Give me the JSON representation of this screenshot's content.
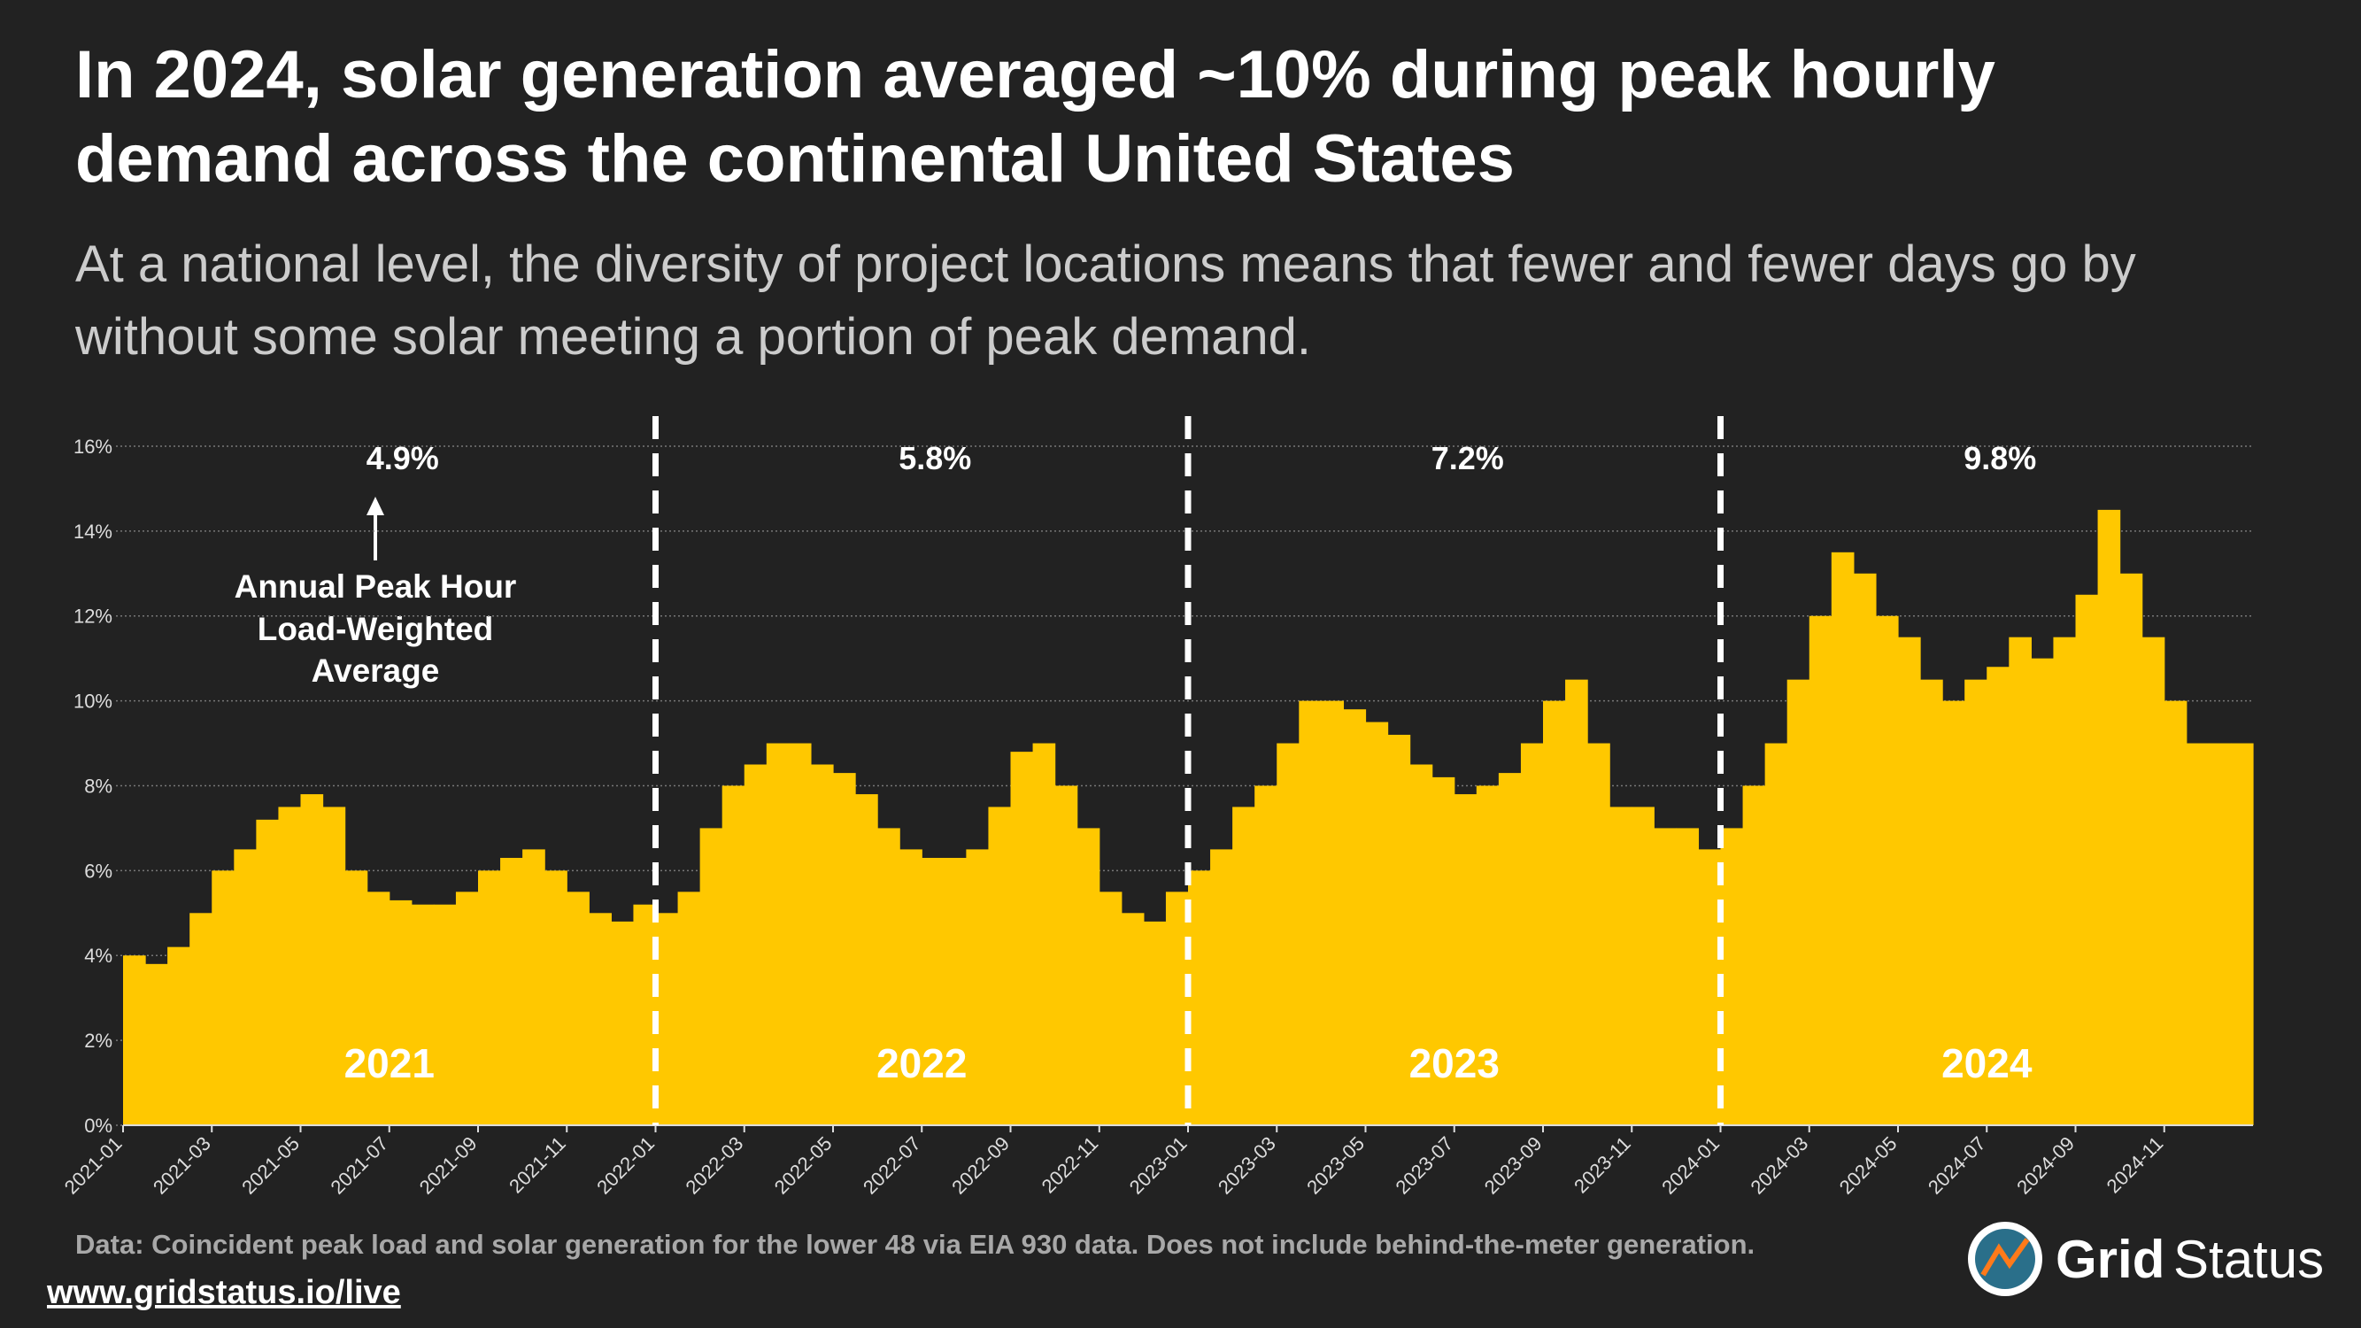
{
  "chart_data": {
    "type": "bar",
    "title_lines": [
      "In 2024, solar generation averaged ~10% during peak hourly",
      "demand across the continental United States"
    ],
    "subtitle_lines": [
      "At a national level, the diversity of project locations means that fewer and fewer days go by",
      "without some solar meeting a portion of peak demand."
    ],
    "categories": [
      "2021-01",
      null,
      null,
      null,
      "2021-03",
      null,
      null,
      null,
      "2021-05",
      null,
      null,
      null,
      "2021-07",
      null,
      null,
      null,
      "2021-09",
      null,
      null,
      null,
      "2021-11",
      null,
      null,
      null,
      "2022-01",
      null,
      null,
      null,
      "2022-03",
      null,
      null,
      null,
      "2022-05",
      null,
      null,
      null,
      "2022-07",
      null,
      null,
      null,
      "2022-09",
      null,
      null,
      null,
      "2022-11",
      null,
      null,
      null,
      "2023-01",
      null,
      null,
      null,
      "2023-03",
      null,
      null,
      null,
      "2023-05",
      null,
      null,
      null,
      "2023-07",
      null,
      null,
      null,
      "2023-09",
      null,
      null,
      null,
      "2023-11",
      null,
      null,
      null,
      "2024-01",
      null,
      null,
      null,
      "2024-03",
      null,
      null,
      null,
      "2024-05",
      null,
      null,
      null,
      "2024-07",
      null,
      null,
      null,
      "2024-09",
      null,
      null,
      null,
      "2024-11",
      null,
      null,
      null
    ],
    "values": [
      4,
      3.8,
      4.2,
      5,
      6,
      6.5,
      7.2,
      7.5,
      7.8,
      7.5,
      6,
      5.5,
      5.3,
      5.2,
      5.2,
      5.5,
      6,
      6.3,
      6.5,
      6,
      5.5,
      5,
      4.8,
      5.2,
      5,
      5.5,
      7,
      8,
      8.5,
      9,
      9,
      8.5,
      8.3,
      7.8,
      7,
      6.5,
      6.3,
      6.3,
      6.5,
      7.5,
      8.8,
      9,
      8,
      7,
      5.5,
      5,
      4.8,
      5.5,
      6,
      6.5,
      7.5,
      8,
      9,
      10,
      10,
      9.8,
      9.5,
      9.2,
      8.5,
      8.2,
      7.8,
      8,
      8.3,
      9,
      10,
      10.5,
      9,
      7.5,
      7.5,
      7,
      7,
      6.5,
      7,
      8,
      9,
      10.5,
      12,
      13.5,
      13,
      12,
      11.5,
      10.5,
      10,
      10.5,
      10.8,
      11.5,
      11,
      11.5,
      12.5,
      14.5,
      13,
      11.5,
      10,
      9,
      9,
      9
    ],
    "color": "#ffc800",
    "ylim": [
      0,
      16.5
    ],
    "yticks": [
      {
        "value": 0,
        "label": "0%"
      },
      {
        "value": 2,
        "label": "2%"
      },
      {
        "value": 4,
        "label": "4%"
      },
      {
        "value": 6,
        "label": "6%"
      },
      {
        "value": 8,
        "label": "8%"
      },
      {
        "value": 10,
        "label": "10%"
      },
      {
        "value": 12,
        "label": "12%"
      },
      {
        "value": 14,
        "label": "14%"
      },
      {
        "value": 16,
        "label": "16%"
      }
    ],
    "grid": true,
    "periods": [
      "2021",
      "2022",
      "2023",
      "2024"
    ],
    "period_averages": [
      "4.9%",
      "5.8%",
      "7.2%",
      "9.8%"
    ],
    "annotation_lines": [
      "Annual Peak Hour",
      "Load-Weighted",
      "Average"
    ],
    "source": "Data: Coincident peak load and solar generation for the lower 48 via EIA 930 data. Does not include behind-the-meter generation.",
    "url": "www.gridstatus.io/live",
    "logo_parts": [
      "Grid",
      "Status"
    ]
  }
}
